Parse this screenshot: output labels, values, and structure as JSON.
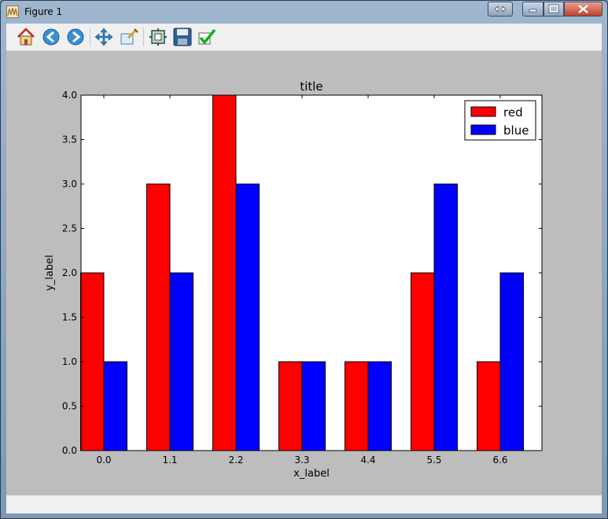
{
  "window": {
    "title": "Figure 1"
  },
  "toolbar": {
    "buttons": [
      {
        "icon": "home-icon"
      },
      {
        "icon": "back-arrow-icon"
      },
      {
        "icon": "forward-arrow-icon"
      },
      {
        "icon": "pan-move-icon"
      },
      {
        "icon": "zoom-rect-icon"
      },
      {
        "icon": "subplots-config-icon"
      },
      {
        "icon": "save-disk-icon"
      },
      {
        "icon": "edit-checkmark-icon"
      }
    ]
  },
  "chart_data": {
    "type": "bar",
    "title": "title",
    "xlabel": "x_label",
    "ylabel": "y_label",
    "categories": [
      "0.0",
      "1.1",
      "2.2",
      "3.3",
      "4.4",
      "5.5",
      "6.6"
    ],
    "series": [
      {
        "name": "red",
        "color": "#ff0000",
        "values": [
          2,
          3,
          4,
          1,
          1,
          2,
          1
        ]
      },
      {
        "name": "blue",
        "color": "#0000ff",
        "values": [
          1,
          2,
          3,
          1,
          1,
          3,
          2
        ]
      }
    ],
    "ylim": [
      0,
      4
    ],
    "yticks": [
      "0.0",
      "0.5",
      "1.0",
      "1.5",
      "2.0",
      "2.5",
      "3.0",
      "3.5",
      "4.0"
    ],
    "grid": false,
    "legend": "top-right"
  }
}
